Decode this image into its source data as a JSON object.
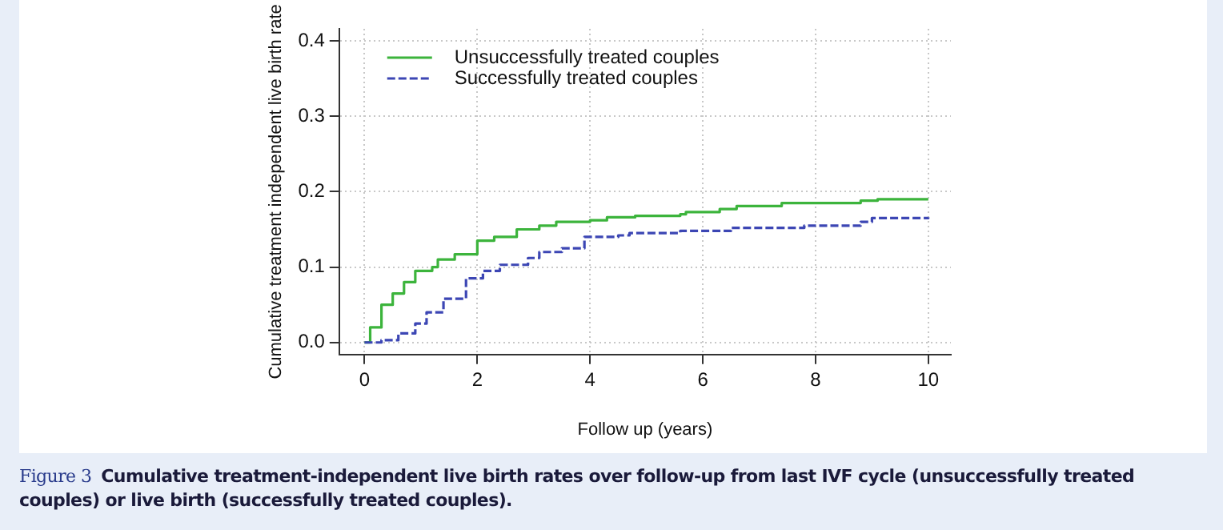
{
  "chart_data": {
    "type": "step",
    "xlabel": "Follow up (years)",
    "ylabel": "Cumulative treatment independent live birth rate",
    "annotations": [
      "Figure 3",
      "Cumulative treatment-independent live birth rates over follow-up from last IVF cycle (unsuccessfully treated couples) or live birth (successfully treated couples)."
    ],
    "xlim": [
      -0.45,
      10.4
    ],
    "ylim": [
      -0.016,
      0.416
    ],
    "xticks": [
      0,
      2,
      4,
      6,
      8,
      10
    ],
    "yticks": [
      {
        "value": 0,
        "label": "0.0"
      },
      {
        "value": 0.1,
        "label": "0.1"
      },
      {
        "value": 0.2,
        "label": "0.2"
      },
      {
        "value": 0.3,
        "label": "0.3"
      },
      {
        "value": 0.4,
        "label": "0.4"
      }
    ],
    "grid": true,
    "legend": "top left",
    "series": [
      {
        "name": "Unsuccessfully treated couples",
        "color": "#3cb43c",
        "line_style": "solid",
        "x": [
          0,
          0.1,
          0.3,
          0.5,
          0.7,
          0.9,
          1.2,
          1.3,
          1.6,
          2,
          2.3,
          2.7,
          3.1,
          3.4,
          4,
          4.3,
          4.8,
          5.6,
          5.7,
          6.3,
          6.6,
          7.4,
          8.8,
          9.1,
          10
        ],
        "values": [
          0,
          0.02,
          0.05,
          0.065,
          0.08,
          0.095,
          0.1,
          0.11,
          0.117,
          0.135,
          0.14,
          0.15,
          0.155,
          0.16,
          0.162,
          0.166,
          0.168,
          0.17,
          0.173,
          0.177,
          0.181,
          0.185,
          0.188,
          0.19,
          0.19
        ]
      },
      {
        "name": "Successfully treated couples",
        "color": "#3c46b4",
        "line_style": "dashed",
        "x": [
          0,
          0.3,
          0.6,
          0.9,
          1.1,
          1.4,
          1.8,
          2.1,
          2.4,
          2.9,
          3.1,
          3.5,
          3.9,
          4.5,
          4.7,
          5.6,
          6.5,
          7.8,
          8.8,
          9,
          10
        ],
        "values": [
          0,
          0.003,
          0.012,
          0.025,
          0.04,
          0.058,
          0.085,
          0.095,
          0.103,
          0.112,
          0.12,
          0.125,
          0.14,
          0.142,
          0.145,
          0.148,
          0.152,
          0.155,
          0.16,
          0.165,
          0.166
        ]
      }
    ]
  }
}
